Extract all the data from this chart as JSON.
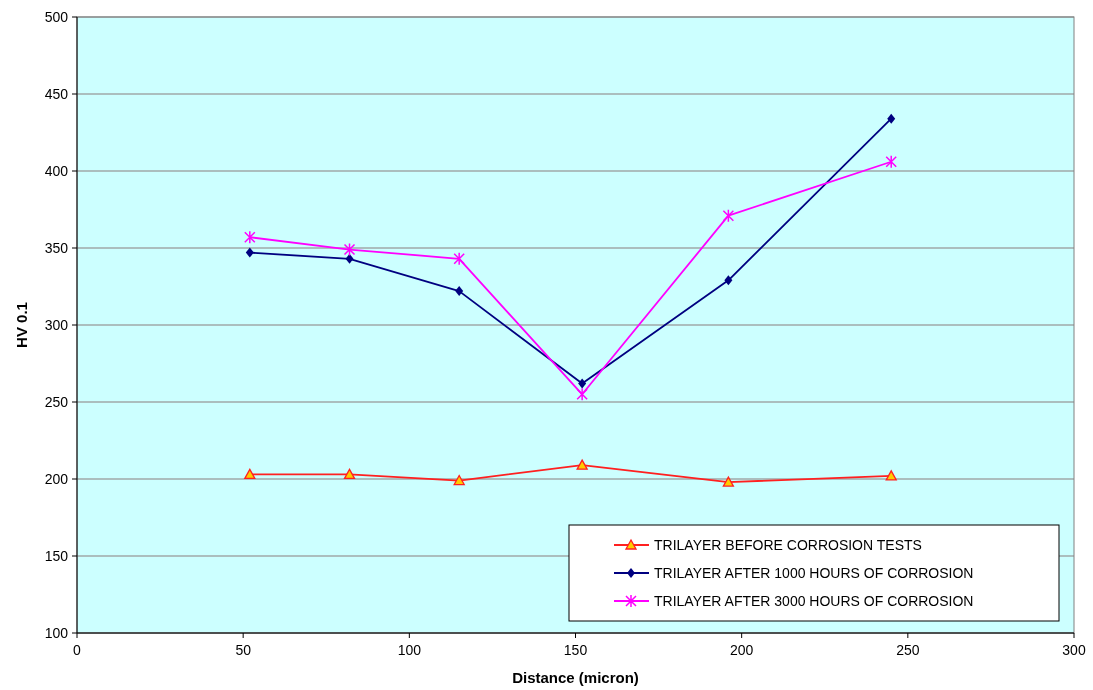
{
  "chart_data": {
    "type": "line",
    "xlabel": "Distance (micron)",
    "ylabel": "HV 0.1",
    "xlim": [
      0,
      300
    ],
    "xticks": [
      0,
      50,
      100,
      150,
      200,
      250,
      300
    ],
    "ylim": [
      100,
      500
    ],
    "yticks": [
      100,
      150,
      200,
      250,
      300,
      350,
      400,
      450,
      500
    ],
    "grid": "y",
    "legend": "bottom right",
    "line_style": "solid",
    "series": [
      {
        "name": "TRILAYER BEFORE CORROSION TESTS",
        "color": "#ff2020",
        "marker": "triangle",
        "x": [
          52,
          82,
          115,
          152,
          196,
          245
        ],
        "values": [
          203,
          203,
          199,
          209,
          198,
          202
        ]
      },
      {
        "name": "TRILAYER AFTER 1000 HOURS OF CORROSION",
        "color": "#000080",
        "marker": "diamond",
        "x": [
          52,
          82,
          115,
          152,
          196,
          245
        ],
        "values": [
          347,
          343,
          322,
          262,
          329,
          434
        ]
      },
      {
        "name": "TRILAYER AFTER 3000 HOURS OF CORROSION",
        "color": "#ff00ff",
        "marker": "cross",
        "x": [
          52,
          82,
          115,
          152,
          196,
          245
        ],
        "values": [
          357,
          349,
          343,
          255,
          371,
          406
        ]
      }
    ]
  }
}
